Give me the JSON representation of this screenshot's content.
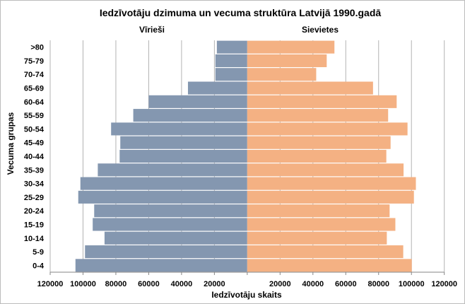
{
  "chart_data": {
    "type": "bar",
    "orientation": "horizontal-pyramid",
    "title": "Iedzīvotāju dzimuma un vecuma struktūra Latvijā 1990.gadā",
    "xlabel": "Iedzīvotāju skaits",
    "ylabel": "Vecuma grupas",
    "xlim": [
      -120000,
      120000
    ],
    "xticks": [
      "120000",
      "100000",
      "80000",
      "60000",
      "40000",
      "20000",
      "",
      "20000",
      "40000",
      "60000",
      "80000",
      "100000",
      "120000"
    ],
    "grid": true,
    "categories": [
      ">80",
      "75-79",
      "70-74",
      "65-69",
      "60-64",
      "55-59",
      "50-54",
      "45-49",
      "40-44",
      "35-39",
      "30-34",
      "25-29",
      "20-24",
      "15-19",
      "10-14",
      "5-9",
      "0-4"
    ],
    "series": [
      {
        "name": "Vīrieši",
        "side": "left",
        "color": "#8497B0",
        "values": [
          18500,
          19400,
          19400,
          36100,
          60000,
          69400,
          82900,
          77300,
          77700,
          91000,
          101600,
          102900,
          93200,
          94100,
          86900,
          98800,
          104600
        ]
      },
      {
        "name": "Sievietes",
        "side": "right",
        "color": "#F4B183",
        "values": [
          53100,
          48400,
          42000,
          76600,
          91000,
          85800,
          97600,
          87300,
          84700,
          95200,
          102700,
          101500,
          86700,
          90200,
          85000,
          95000,
          100200
        ]
      }
    ]
  }
}
